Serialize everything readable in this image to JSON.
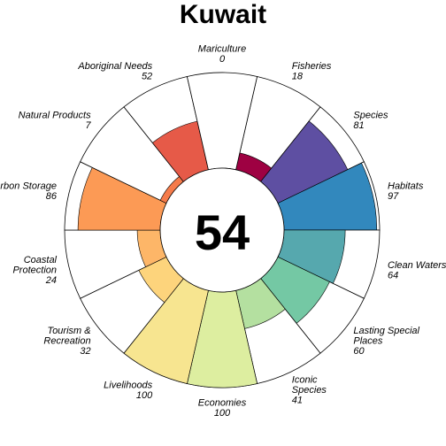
{
  "chart_data": {
    "type": "flower",
    "title": "Kuwait",
    "center_score": "54",
    "scale_max": 100,
    "petals": [
      {
        "label": [
          "Fisheries"
        ],
        "value": 18,
        "color": "#9E0142"
      },
      {
        "label": [
          "Species"
        ],
        "value": 81,
        "color": "#5E4FA2"
      },
      {
        "label": [
          "Habitats"
        ],
        "value": 97,
        "color": "#3288BD"
      },
      {
        "label": [
          "Clean Waters"
        ],
        "value": 64,
        "color": "#56A8AE"
      },
      {
        "label": [
          "Lasting Special",
          "Places"
        ],
        "value": 60,
        "color": "#74C8A4"
      },
      {
        "label": [
          "Iconic",
          "Species"
        ],
        "value": 41,
        "color": "#B4E0A0"
      },
      {
        "label": [
          "Economies"
        ],
        "value": 100,
        "color": "#DDEEA0"
      },
      {
        "label": [
          "Livelihoods"
        ],
        "value": 100,
        "color": "#F7E590"
      },
      {
        "label": [
          "Tourism &",
          "Recreation"
        ],
        "value": 32,
        "color": "#FDD47C"
      },
      {
        "label": [
          "Coastal",
          "Protection"
        ],
        "value": 24,
        "color": "#FDB668"
      },
      {
        "label": [
          "Carbon Storage"
        ],
        "value": 86,
        "color": "#FC9A55"
      },
      {
        "label": [
          "Natural Products"
        ],
        "value": 7,
        "color": "#F57B4A"
      },
      {
        "label": [
          "Aboriginal Needs"
        ],
        "value": 52,
        "color": "#E65A48"
      },
      {
        "label": [
          "Mariculture"
        ],
        "value": 0,
        "color": "#D53E4F"
      }
    ]
  }
}
